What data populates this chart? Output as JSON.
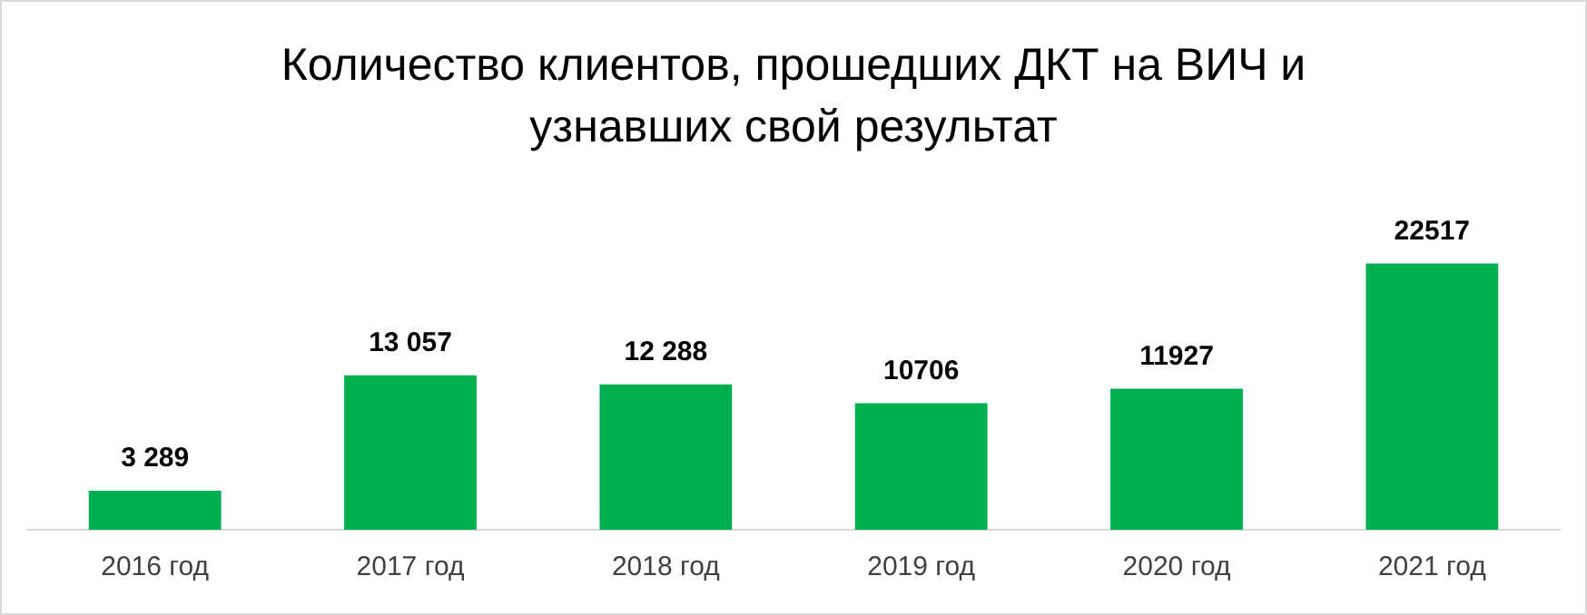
{
  "chart_data": {
    "type": "bar",
    "title": "Количество клиентов, прошедших ДКТ на ВИЧ и узнавших свой результат",
    "categories": [
      "2016 год",
      "2017 год",
      "2018 год",
      "2019 год",
      "2020 год",
      "2021 год"
    ],
    "values": [
      3289,
      13057,
      12288,
      10706,
      11927,
      22517
    ],
    "value_labels": [
      "3 289",
      "13 057",
      "12 288",
      "10706",
      "11927",
      "22517"
    ],
    "color": "#00b050"
  }
}
